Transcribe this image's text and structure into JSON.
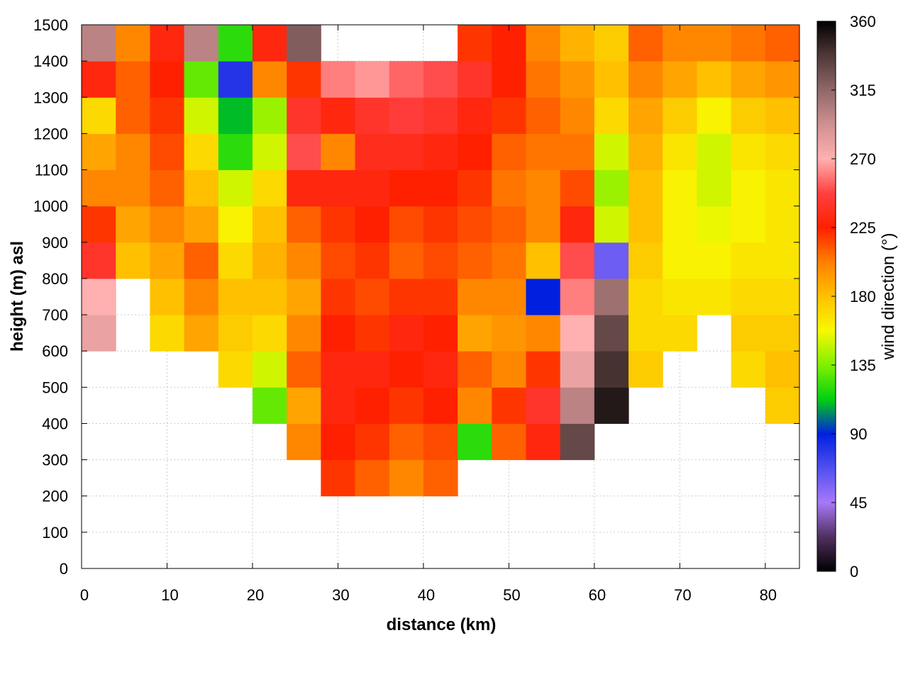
{
  "chart_data": {
    "type": "heatmap",
    "xlabel": "distance (km)",
    "ylabel": "height (m) asl",
    "colorbar_label": "wind direction (°)",
    "xlim": [
      0,
      84
    ],
    "xticks": [
      0,
      10,
      20,
      30,
      40,
      50,
      60,
      70,
      80
    ],
    "ylim": [
      0,
      1500
    ],
    "yticks": [
      0,
      100,
      200,
      300,
      400,
      500,
      600,
      700,
      800,
      900,
      1000,
      1100,
      1200,
      1300,
      1400,
      1500
    ],
    "zlim": [
      0,
      360
    ],
    "zticks": [
      0,
      45,
      90,
      135,
      180,
      225,
      270,
      315,
      360
    ],
    "grid": true,
    "colormap": [
      "#000000",
      "#503060",
      "#a878f8",
      "#5050f0",
      "#0020e0",
      "#00d010",
      "#80f000",
      "#f8f800",
      "#ffc000",
      "#ff8000",
      "#ff2000",
      "#ff4040",
      "#ffb0b0",
      "#d09090",
      "#906868",
      "#503838",
      "#000000"
    ],
    "x": [
      2,
      6,
      10,
      14,
      18,
      22,
      26,
      30,
      34,
      38,
      42,
      46,
      50,
      54,
      58,
      62,
      66,
      70,
      74,
      78,
      82
    ],
    "y": [
      50,
      150,
      250,
      350,
      450,
      550,
      650,
      750,
      850,
      950,
      1050,
      1150,
      1250,
      1350,
      1450
    ],
    "z": [
      [
        null,
        null,
        null,
        null,
        null,
        null,
        280,
        270,
        240,
        220,
        200,
        190,
        170,
        230,
        300
      ],
      [
        null,
        null,
        null,
        null,
        null,
        null,
        null,
        null,
        180,
        190,
        200,
        200,
        210,
        210,
        200
      ],
      [
        null,
        null,
        null,
        null,
        null,
        null,
        170,
        180,
        190,
        200,
        210,
        215,
        220,
        225,
        230
      ],
      [
        null,
        null,
        null,
        null,
        null,
        null,
        190,
        200,
        210,
        190,
        180,
        170,
        150,
        130,
        300
      ],
      [
        null,
        null,
        null,
        null,
        null,
        170,
        175,
        180,
        170,
        160,
        150,
        120,
        110,
        80,
        120
      ],
      [
        null,
        null,
        null,
        null,
        130,
        150,
        170,
        180,
        185,
        180,
        170,
        150,
        140,
        200,
        230
      ],
      [
        null,
        null,
        null,
        200,
        190,
        210,
        200,
        190,
        200,
        210,
        230,
        250,
        240,
        220,
        320
      ],
      [
        null,
        null,
        220,
        225,
        230,
        230,
        225,
        220,
        215,
        220,
        230,
        200,
        230,
        260,
        null
      ],
      [
        null,
        null,
        210,
        220,
        225,
        230,
        220,
        215,
        220,
        225,
        230,
        235,
        240,
        265,
        null
      ],
      [
        null,
        null,
        200,
        210,
        220,
        225,
        230,
        220,
        210,
        215,
        225,
        235,
        245,
        255,
        null
      ],
      [
        null,
        null,
        210,
        215,
        225,
        230,
        225,
        220,
        215,
        220,
        225,
        230,
        240,
        250,
        null
      ],
      [
        null,
        null,
        null,
        120,
        200,
        210,
        190,
        200,
        210,
        215,
        220,
        225,
        230,
        240,
        220
      ],
      [
        null,
        null,
        null,
        210,
        220,
        200,
        195,
        200,
        205,
        210,
        205,
        210,
        220,
        225,
        225
      ],
      [
        null,
        null,
        null,
        230,
        240,
        220,
        200,
        90,
        180,
        200,
        200,
        205,
        210,
        205,
        200
      ],
      [
        null,
        null,
        null,
        330,
        300,
        280,
        270,
        260,
        250,
        230,
        215,
        205,
        200,
        195,
        185
      ],
      [
        null,
        null,
        null,
        null,
        350,
        340,
        330,
        310,
        60,
        150,
        140,
        150,
        170,
        180,
        175
      ],
      [
        null,
        null,
        null,
        null,
        null,
        175,
        170,
        170,
        175,
        180,
        180,
        185,
        190,
        200,
        210
      ],
      [
        null,
        null,
        null,
        null,
        null,
        null,
        170,
        165,
        160,
        160,
        160,
        165,
        175,
        190,
        200
      ],
      [
        null,
        null,
        null,
        null,
        null,
        null,
        null,
        165,
        160,
        155,
        150,
        150,
        160,
        180,
        200
      ],
      [
        null,
        null,
        null,
        null,
        null,
        170,
        175,
        170,
        165,
        160,
        160,
        165,
        175,
        190,
        205
      ],
      [
        null,
        null,
        null,
        null,
        175,
        180,
        175,
        170,
        165,
        165,
        165,
        170,
        180,
        195,
        210
      ]
    ]
  }
}
